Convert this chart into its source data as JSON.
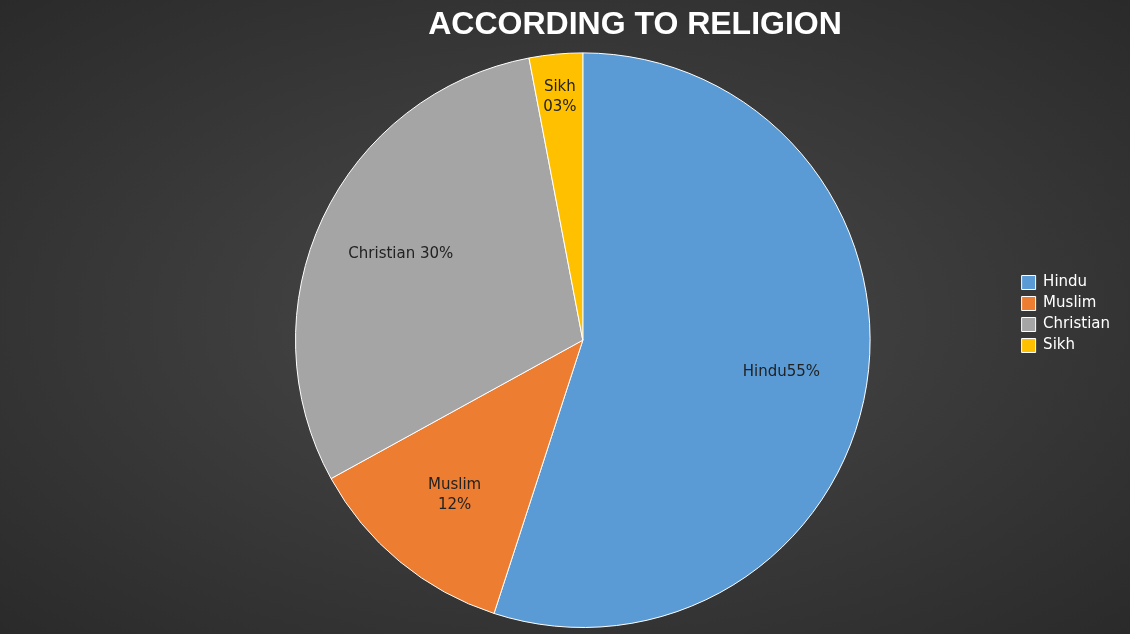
{
  "chart_data": {
    "type": "pie",
    "title": "ACCORDING TO RELIGION",
    "categories": [
      "Hindu",
      "Muslim",
      "Christian",
      "Sikh"
    ],
    "values": [
      55,
      12,
      30,
      3
    ],
    "colors": [
      "#5b9bd5",
      "#ed7d31",
      "#a5a5a5",
      "#ffc000"
    ],
    "value_labels": [
      "Hindu55%",
      "Muslim\n12%",
      "Christian 30%",
      "Sikh\n03%"
    ],
    "legend": "right"
  }
}
